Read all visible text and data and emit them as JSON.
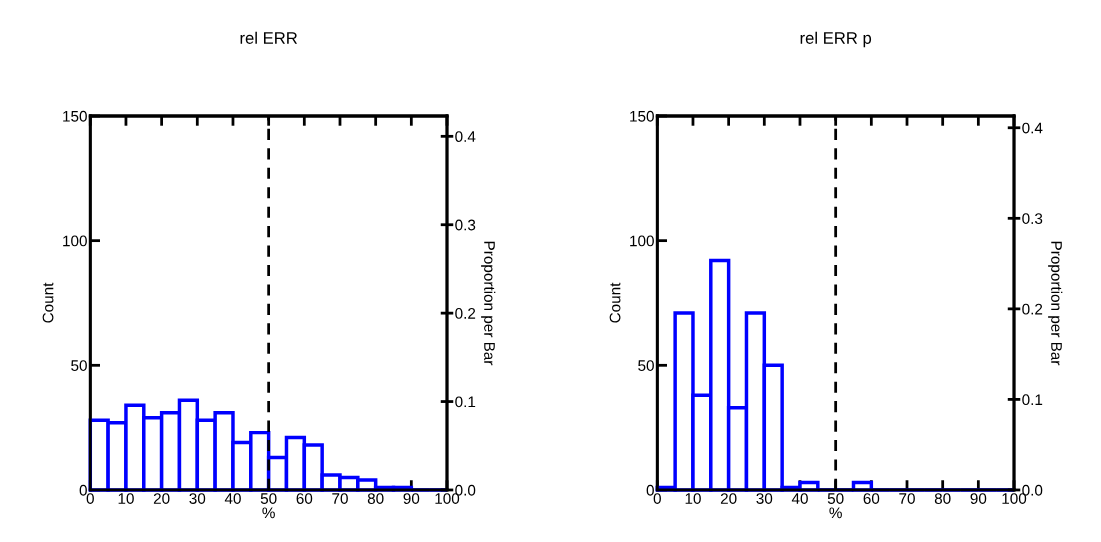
{
  "chart_data": [
    {
      "type": "histogram",
      "title": "rel ERR",
      "xlabel": "%",
      "ylabel": "Count",
      "y2label": "Proportion per Bar",
      "bins": [
        0,
        5,
        10,
        15,
        20,
        25,
        30,
        35,
        40,
        45,
        50,
        55,
        60,
        65,
        70,
        75,
        80,
        85,
        90,
        95,
        100
      ],
      "values": [
        28,
        27,
        34,
        29,
        31,
        36,
        28,
        31,
        19,
        23,
        13,
        21,
        18,
        6,
        5,
        4,
        1,
        1,
        0,
        0
      ],
      "color": "#0000ff",
      "xlim": [
        0,
        100
      ],
      "xticks": [
        0,
        10,
        20,
        30,
        40,
        50,
        60,
        70,
        80,
        90,
        100
      ],
      "ylim": [
        0,
        150
      ],
      "yticks": [
        0,
        50,
        100,
        150
      ],
      "y2lim": [
        0,
        0.423
      ],
      "y2ticks": [
        {
          "value": 0,
          "label": "0.0"
        },
        0.1,
        0.2,
        0.3,
        0.4
      ],
      "ref_lines": [
        {
          "axis": "x",
          "value": 50,
          "color": "#000000",
          "line_style": "dashed"
        }
      ],
      "grid": false,
      "legend": false
    },
    {
      "type": "histogram",
      "title": "rel ERR p",
      "xlabel": "%",
      "ylabel": "Count",
      "y2label": "Proportion per Bar",
      "bins": [
        0,
        5,
        10,
        15,
        20,
        25,
        30,
        35,
        40,
        45,
        50,
        55,
        60,
        65,
        70,
        75,
        80,
        85,
        90,
        95,
        100
      ],
      "values": [
        1,
        71,
        38,
        92,
        33,
        71,
        50,
        1,
        3,
        0,
        0,
        3,
        0,
        0,
        0,
        0,
        0,
        0,
        0,
        0
      ],
      "color": "#0000ff",
      "xlim": [
        0,
        100
      ],
      "xticks": [
        0,
        10,
        20,
        30,
        40,
        50,
        60,
        70,
        80,
        90,
        100
      ],
      "ylim": [
        0,
        150
      ],
      "yticks": [
        0,
        50,
        100,
        150
      ],
      "y2lim": [
        0,
        0.413
      ],
      "y2ticks": [
        {
          "value": 0,
          "label": "0.0"
        },
        0.1,
        0.2,
        0.3,
        0.4
      ],
      "ref_lines": [
        {
          "axis": "x",
          "value": 50,
          "color": "#000000",
          "line_style": "dashed"
        }
      ],
      "grid": false,
      "legend": false
    }
  ]
}
